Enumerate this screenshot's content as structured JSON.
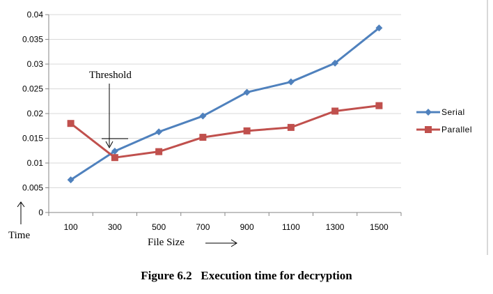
{
  "chart_data": {
    "type": "line",
    "categories": [
      "100",
      "300",
      "500",
      "700",
      "900",
      "1100",
      "1300",
      "1500"
    ],
    "series": [
      {
        "name": "Serial",
        "color": "#4F81BD",
        "marker": "diamond",
        "values": [
          0.0066,
          0.0124,
          0.0163,
          0.0195,
          0.0243,
          0.0264,
          0.0302,
          0.0373
        ]
      },
      {
        "name": "Parallel",
        "color": "#C0504D",
        "marker": "square",
        "values": [
          0.018,
          0.0111,
          0.0123,
          0.0152,
          0.0165,
          0.0172,
          0.0205,
          0.0216
        ]
      }
    ],
    "ylim": [
      0,
      0.04
    ],
    "yticks": [
      "0",
      "0.005",
      "0.01",
      "0.015",
      "0.02",
      "0.025",
      "0.03",
      "0.035",
      "0.04"
    ],
    "xlabel": "File Size",
    "ylabel": "Time",
    "annotation": "Threshold",
    "gridlines": true,
    "legend_position": "right"
  },
  "caption": "Figure 6.2   Execution time for decryption"
}
